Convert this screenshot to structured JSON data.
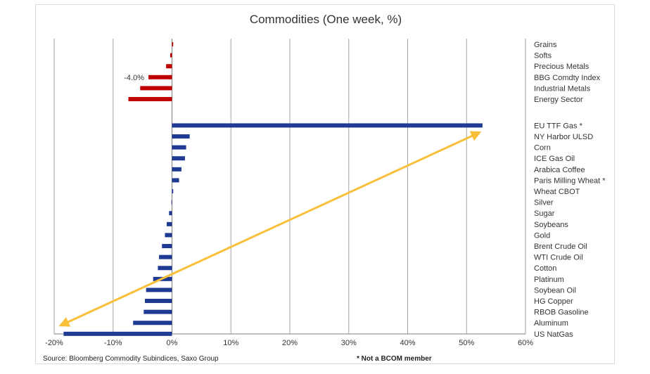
{
  "chart_data": {
    "type": "bar",
    "orientation": "horizontal",
    "title": "Commodities (One week, %)",
    "xlim": [
      -20,
      60
    ],
    "x_ticks": [
      "-20%",
      "-10%",
      "0%",
      "10%",
      "20%",
      "30%",
      "40%",
      "50%",
      "60%"
    ],
    "grid": true,
    "groups": [
      {
        "color": "#c00000",
        "categories": [
          "Grains",
          "Softs",
          "Precious Metals",
          "BBG Comdty Index",
          "Industrial Metals",
          "Energy Sector"
        ],
        "values": [
          0.2,
          -0.3,
          -1.0,
          -4.0,
          -5.4,
          -7.4
        ]
      },
      {
        "color": "#1f3a93",
        "categories": [
          "EU TTF Gas *",
          "NY Harbor ULSD",
          "Corn",
          "ICE Gas Oil",
          "Arabica Coffee",
          "Paris Milling Wheat *",
          "Wheat CBOT",
          "Silver",
          "Sugar",
          "Soybeans",
          "Gold",
          "Brent Crude Oil",
          "WTI Crude Oil",
          "Cotton",
          "Platinum",
          "Soybean Oil",
          "HG Copper",
          "RBOB Gasoline",
          "Aluminum",
          "US NatGas"
        ],
        "values": [
          52.7,
          3.0,
          2.4,
          2.2,
          1.6,
          1.2,
          0.2,
          -0.1,
          -0.5,
          -0.9,
          -1.2,
          -1.7,
          -2.2,
          -2.4,
          -3.2,
          -4.4,
          -4.6,
          -4.8,
          -6.6,
          -18.4
        ]
      }
    ],
    "data_labels": [
      {
        "category": "BBG Comdty Index",
        "text": "-4.0%"
      }
    ],
    "source": "Source: Bloomberg Commodity Subindices, Saxo Group",
    "footnote": "* Not a BCOM member",
    "arrow_color": "#f8bf3b"
  }
}
